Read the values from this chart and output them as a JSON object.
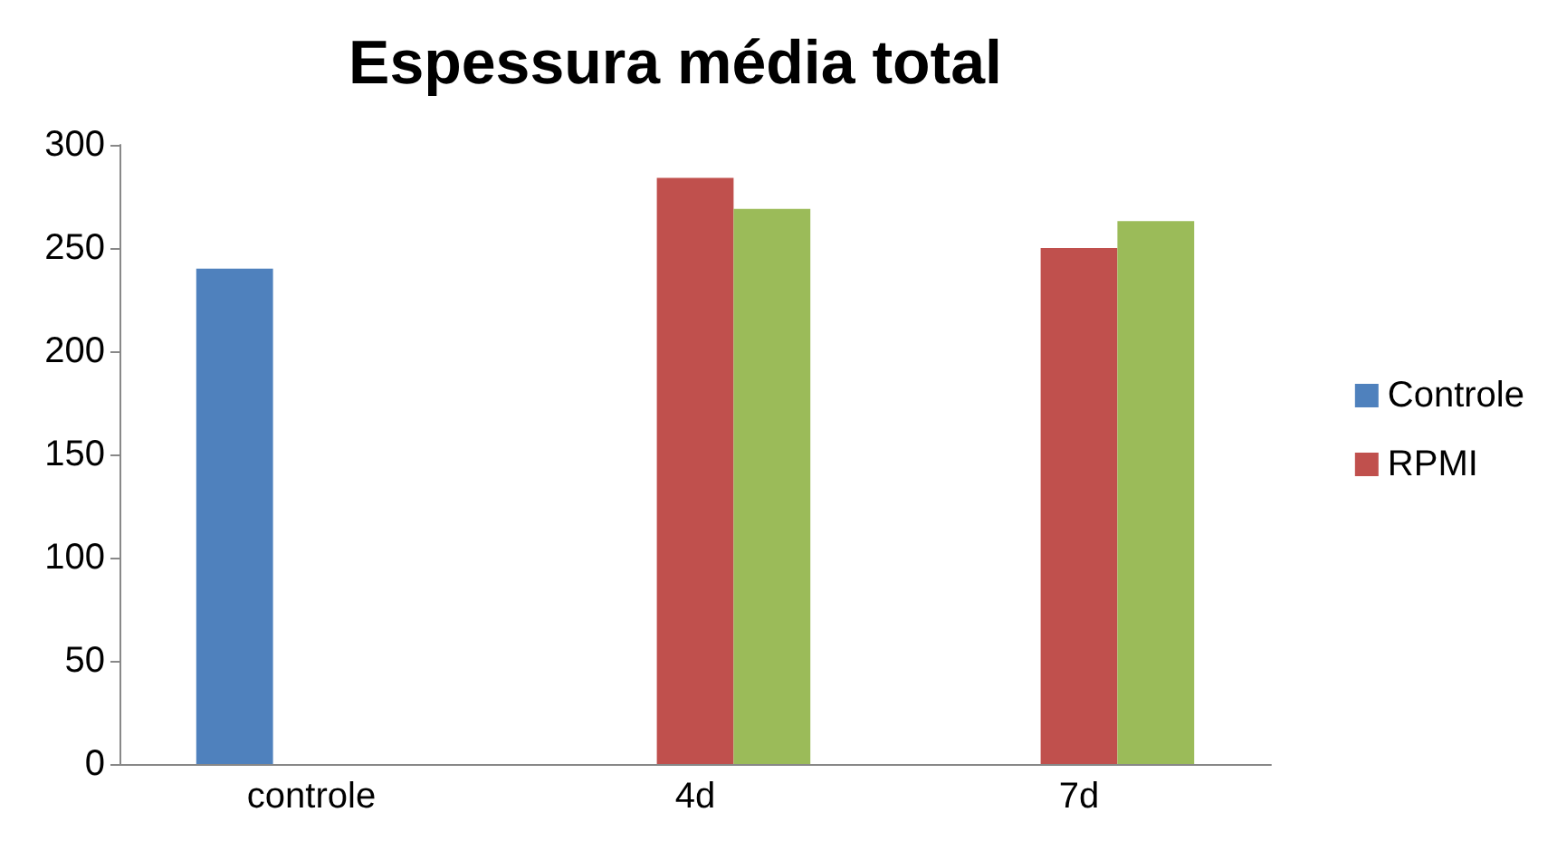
{
  "chart_data": {
    "type": "bar",
    "title": "Espessura média total",
    "categories": [
      "controle",
      "4d",
      "7d"
    ],
    "series": [
      {
        "name": "Controle",
        "color": "#4f81bd",
        "values": [
          240,
          null,
          null
        ]
      },
      {
        "name": "RPMI",
        "color": "#c0504d",
        "values": [
          null,
          284,
          250
        ]
      },
      {
        "color": "#9bbb59",
        "values": [
          null,
          269,
          263
        ]
      }
    ],
    "ylim": [
      0,
      300
    ],
    "yticks": [
      0,
      50,
      100,
      150,
      200,
      250,
      300
    ],
    "grid": false,
    "legend": "right"
  }
}
